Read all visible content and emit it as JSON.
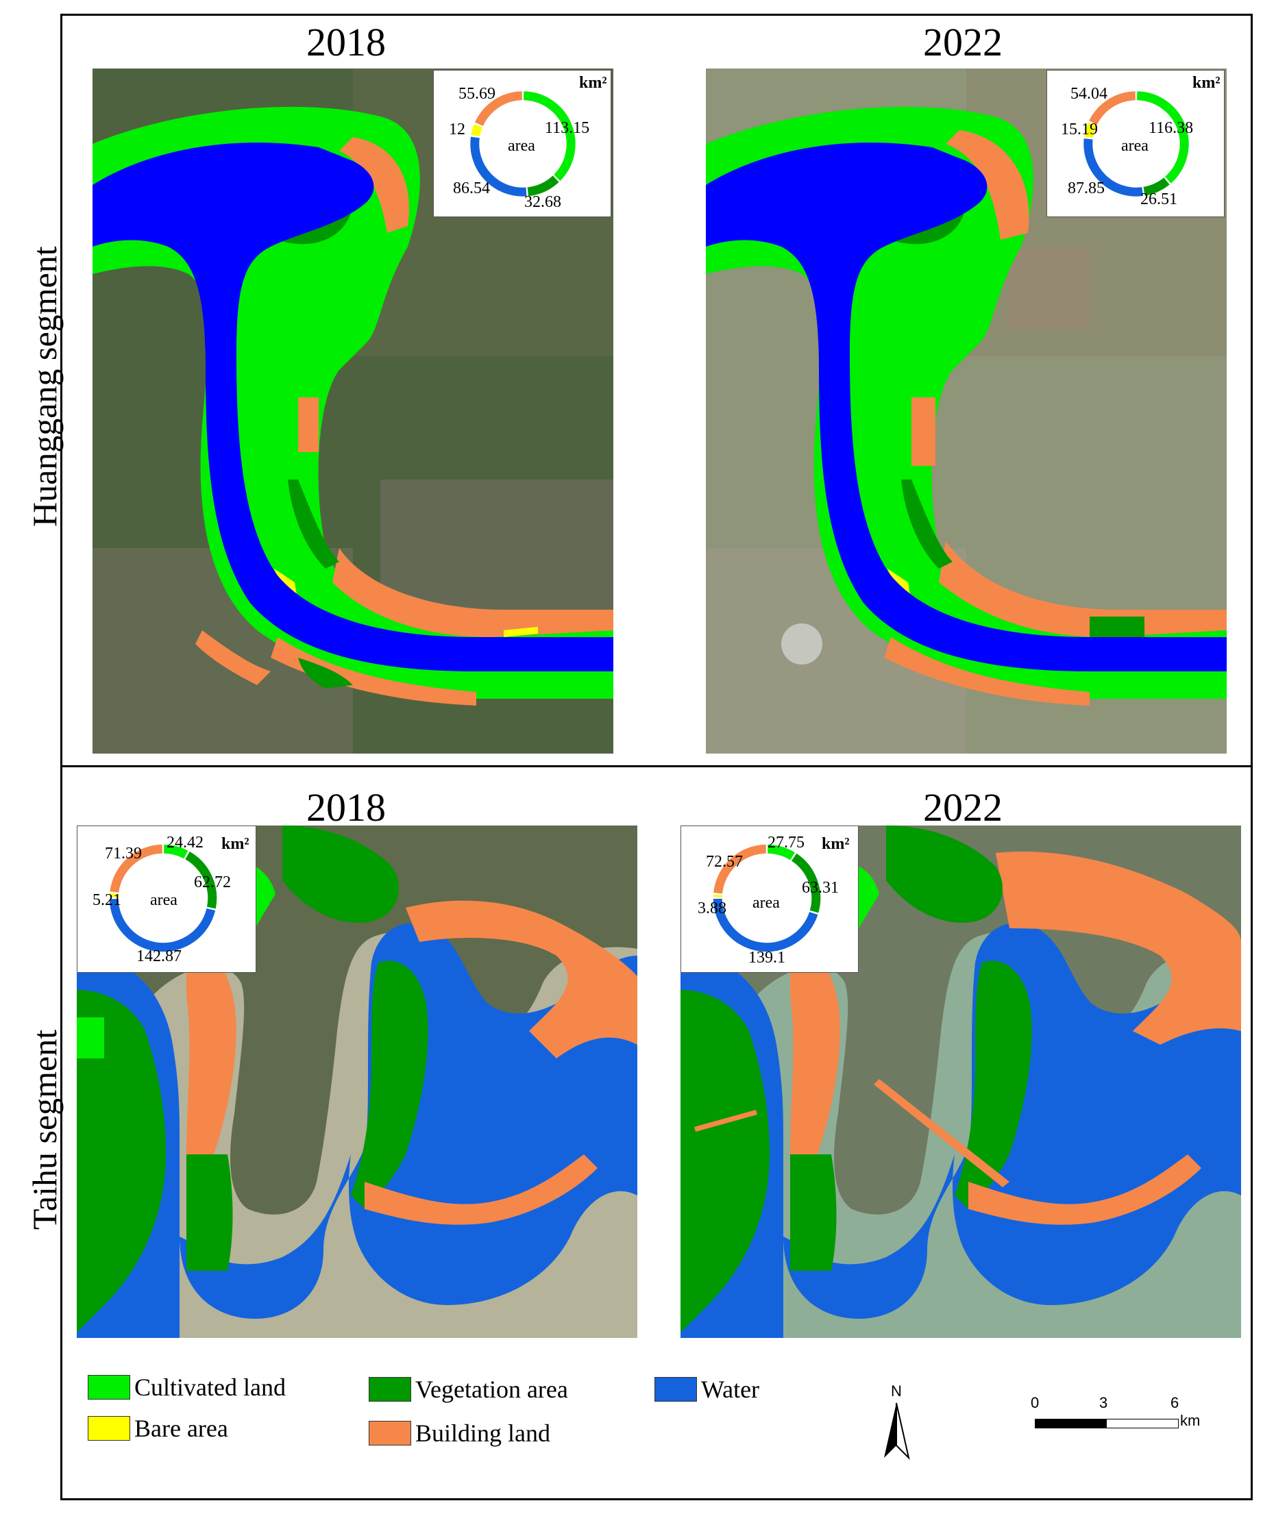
{
  "rows": [
    {
      "label": "Huanggang segment",
      "panels": [
        {
          "year": "2018",
          "donut": {
            "center_label": "area",
            "unit": "km²",
            "values": [
              {
                "class": "Cultivated land",
                "value": "113.15",
                "color": "#00ee00"
              },
              {
                "class": "Vegetation area",
                "value": "32.68",
                "color": "#009900"
              },
              {
                "class": "Water",
                "value": "86.54",
                "color": "#1463dc"
              },
              {
                "class": "Bare area",
                "value": "12",
                "color": "#ffff00"
              },
              {
                "class": "Building land",
                "value": "55.69",
                "color": "#f5874b"
              }
            ]
          }
        },
        {
          "year": "2022",
          "donut": {
            "center_label": "area",
            "unit": "km²",
            "values": [
              {
                "class": "Cultivated land",
                "value": "116.38",
                "color": "#00ee00"
              },
              {
                "class": "Vegetation area",
                "value": "26.51",
                "color": "#009900"
              },
              {
                "class": "Water",
                "value": "87.85",
                "color": "#1463dc"
              },
              {
                "class": "Bare area",
                "value": "15.19",
                "color": "#ffff00"
              },
              {
                "class": "Building land",
                "value": "54.04",
                "color": "#f5874b"
              }
            ]
          }
        }
      ]
    },
    {
      "label": "Taihu segment",
      "panels": [
        {
          "year": "2018",
          "donut": {
            "center_label": "area",
            "unit": "km²",
            "values": [
              {
                "class": "Cultivated land",
                "value": "24.42",
                "color": "#00ee00"
              },
              {
                "class": "Vegetation area",
                "value": "62.72",
                "color": "#009900"
              },
              {
                "class": "Water",
                "value": "142.87",
                "color": "#1463dc"
              },
              {
                "class": "Bare area",
                "value": "5.21",
                "color": "#ffff00"
              },
              {
                "class": "Building land",
                "value": "71.39",
                "color": "#f5874b"
              }
            ]
          }
        },
        {
          "year": "2022",
          "donut": {
            "center_label": "area",
            "unit": "km²",
            "values": [
              {
                "class": "Cultivated land",
                "value": "27.75",
                "color": "#00ee00"
              },
              {
                "class": "Vegetation area",
                "value": "63.31",
                "color": "#009900"
              },
              {
                "class": "Water",
                "value": "139.1",
                "color": "#1463dc"
              },
              {
                "class": "Bare area",
                "value": "3.88",
                "color": "#ffff00"
              },
              {
                "class": "Building land",
                "value": "72.57",
                "color": "#f5874b"
              }
            ]
          }
        }
      ]
    }
  ],
  "legend": [
    {
      "label": "Cultivated land",
      "color": "#00ee00"
    },
    {
      "label": "Bare area",
      "color": "#ffff00"
    },
    {
      "label": "Vegetation area",
      "color": "#009900"
    },
    {
      "label": "Building land",
      "color": "#f5874b"
    },
    {
      "label": "Water",
      "color": "#1463dc"
    }
  ],
  "north_arrow": {
    "label": "N"
  },
  "scale_bar": {
    "ticks": [
      "0",
      "3",
      "6"
    ],
    "unit": "km"
  },
  "colors": {
    "satellite_dark": "#4f6240",
    "satellite_light": "#8f9578",
    "lake_water": "#b5b39a",
    "lake_water_2022": "#8fae98"
  }
}
